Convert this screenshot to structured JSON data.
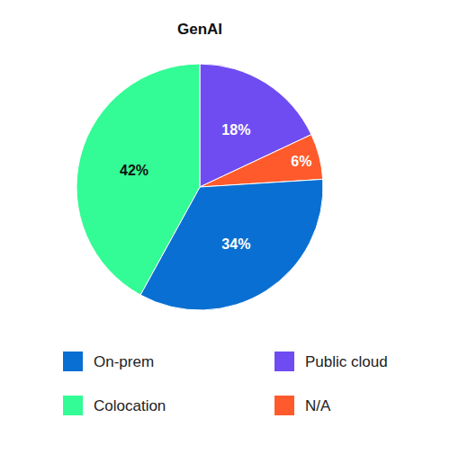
{
  "chart_data": {
    "type": "pie",
    "title": "GenAI",
    "categories": [
      "Public cloud",
      "N/A",
      "On-prem",
      "Colocation"
    ],
    "values": [
      18,
      6,
      34,
      42
    ],
    "value_labels": [
      "18%",
      "6%",
      "34%",
      "42%"
    ],
    "colors": [
      "#6f4cf2",
      "#ff5a2c",
      "#0a6fd2",
      "#33fb95"
    ],
    "data_labels": true,
    "legend": "bottom"
  }
}
